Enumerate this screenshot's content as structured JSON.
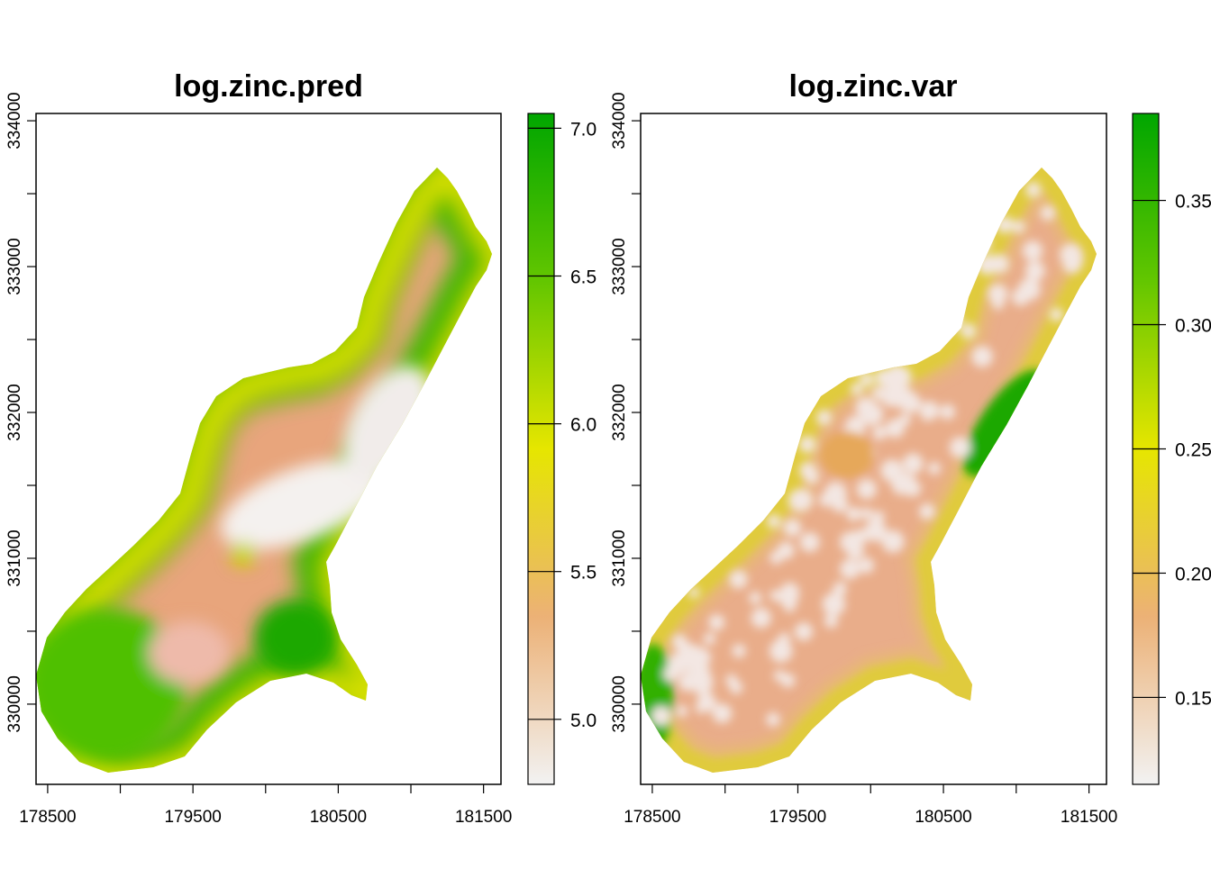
{
  "chart_data": [
    {
      "type": "heatmap",
      "title": "log.zinc.pred",
      "xlabel": "",
      "ylabel": "",
      "x_ticks": [
        "178500",
        "179500",
        "180500",
        "181500"
      ],
      "y_ticks": [
        "330000",
        "331000",
        "332000",
        "333000",
        "334000"
      ],
      "xlim": [
        178420,
        181620
      ],
      "ylim": [
        329450,
        334050
      ],
      "legend": {
        "position": "right",
        "range": [
          4.78,
          7.05
        ],
        "ticks": [
          "5.0",
          "5.5",
          "6.0",
          "6.5",
          "7.0"
        ]
      },
      "colors": [
        "#F2F2F2",
        "#ECB176",
        "#E6E600",
        "#63C600",
        "#00A600"
      ],
      "regions": [
        {
          "label": "inner",
          "value": 5.3
        },
        {
          "label": "northwest edge",
          "value": 6.5
        },
        {
          "label": "southwest lobe",
          "value": 6.6
        },
        {
          "label": "central low",
          "value": 4.85
        },
        {
          "label": "south bulge",
          "value": 6.9
        }
      ]
    },
    {
      "type": "heatmap",
      "title": "log.zinc.var",
      "xlabel": "",
      "ylabel": "",
      "x_ticks": [
        "178500",
        "179500",
        "180500",
        "181500"
      ],
      "y_ticks": [
        "330000",
        "331000",
        "332000",
        "333000",
        "334000"
      ],
      "xlim": [
        178420,
        181620
      ],
      "ylim": [
        329450,
        334050
      ],
      "legend": {
        "position": "right",
        "range": [
          0.115,
          0.385
        ],
        "ticks": [
          "0.15",
          "0.20",
          "0.25",
          "0.30",
          "0.35"
        ]
      },
      "colors": [
        "#F2F2F2",
        "#ECB176",
        "#E6E600",
        "#63C600",
        "#00A600"
      ],
      "regions": [
        {
          "label": "interior",
          "value": 0.16
        },
        {
          "label": "boundary ring",
          "value": 0.27
        },
        {
          "label": "east edge",
          "value": 0.34
        },
        {
          "label": "southwest corner",
          "value": 0.33
        }
      ]
    }
  ]
}
